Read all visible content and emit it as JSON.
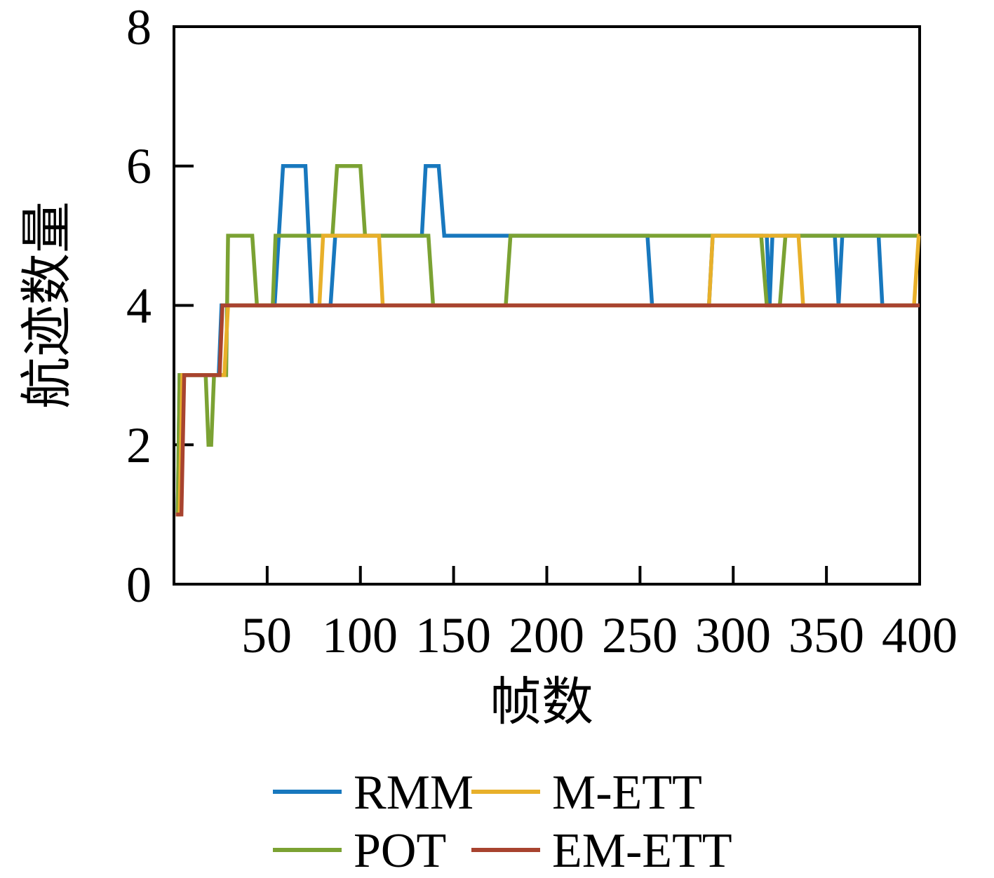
{
  "chart_data": {
    "type": "line",
    "title": "",
    "xlabel": "帧数",
    "ylabel": "航迹数量",
    "xlim": [
      0,
      400
    ],
    "ylim": [
      0,
      8
    ],
    "x_ticks": [
      50,
      100,
      150,
      200,
      250,
      300,
      350,
      400
    ],
    "y_ticks": [
      0,
      2,
      4,
      6,
      8
    ],
    "grid": false,
    "box": true,
    "axis_color": "#000000",
    "legend_position": "below-two-columns",
    "series": [
      {
        "name": "RMM",
        "color": "#1878BE",
        "points": [
          [
            1,
            1
          ],
          [
            2,
            1
          ],
          [
            3,
            3
          ],
          [
            24,
            3
          ],
          [
            25.5,
            4
          ],
          [
            54,
            4
          ],
          [
            58.5,
            6
          ],
          [
            70.5,
            6
          ],
          [
            74,
            4
          ],
          [
            84,
            4
          ],
          [
            86.5,
            5
          ],
          [
            133,
            5
          ],
          [
            135,
            6
          ],
          [
            142,
            6
          ],
          [
            145,
            5
          ],
          [
            254,
            5
          ],
          [
            256.5,
            4
          ],
          [
            287,
            4
          ],
          [
            289,
            5
          ],
          [
            318,
            5
          ],
          [
            319.5,
            4
          ],
          [
            321,
            5
          ],
          [
            354.5,
            5
          ],
          [
            356.5,
            4
          ],
          [
            358.5,
            5
          ],
          [
            378,
            5
          ],
          [
            380,
            4
          ],
          [
            400,
            4
          ]
        ]
      },
      {
        "name": "POT",
        "color": "#7BA233",
        "points": [
          [
            1,
            1
          ],
          [
            2,
            1
          ],
          [
            3,
            3
          ],
          [
            17,
            3
          ],
          [
            18.5,
            2
          ],
          [
            20,
            2
          ],
          [
            21.5,
            3
          ],
          [
            28,
            3
          ],
          [
            29,
            5
          ],
          [
            42,
            5
          ],
          [
            44.5,
            4
          ],
          [
            53,
            4
          ],
          [
            54.5,
            5
          ],
          [
            85,
            5
          ],
          [
            87.5,
            6
          ],
          [
            100,
            6
          ],
          [
            102.5,
            5
          ],
          [
            136.5,
            5
          ],
          [
            139,
            4
          ],
          [
            178,
            4
          ],
          [
            180.5,
            5
          ],
          [
            315,
            5
          ],
          [
            318,
            4
          ],
          [
            325,
            4
          ],
          [
            328,
            5
          ],
          [
            400,
            5
          ]
        ]
      },
      {
        "name": "M-ETT",
        "color": "#E8B02A",
        "points": [
          [
            1,
            1
          ],
          [
            3,
            1
          ],
          [
            4.5,
            3
          ],
          [
            27,
            3
          ],
          [
            29,
            4
          ],
          [
            78,
            4
          ],
          [
            80,
            5
          ],
          [
            110,
            5
          ],
          [
            112,
            4
          ],
          [
            287,
            4
          ],
          [
            289,
            5
          ],
          [
            335,
            5
          ],
          [
            337.5,
            4
          ],
          [
            397,
            4
          ],
          [
            399.5,
            5
          ],
          [
            400,
            5
          ]
        ]
      },
      {
        "name": "EM-ETT",
        "color": "#A8432F",
        "points": [
          [
            1,
            1
          ],
          [
            4,
            1
          ],
          [
            5.5,
            3
          ],
          [
            24.5,
            3
          ],
          [
            26,
            4
          ],
          [
            400,
            4
          ]
        ]
      }
    ]
  }
}
